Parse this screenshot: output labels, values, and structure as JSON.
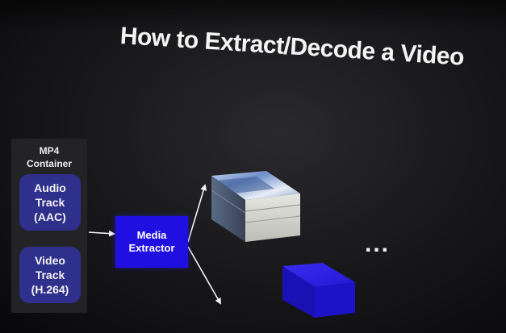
{
  "slide": {
    "title": "How to Extract/Decode a Video"
  },
  "container": {
    "label": "MP4\nContainer",
    "tracks": [
      {
        "label": "Audio\nTrack\n(AAC)"
      },
      {
        "label": "Video\nTrack\n(H.264)"
      }
    ]
  },
  "extractor": {
    "label": "Media\nExtractor"
  },
  "continuation": {
    "label": "..."
  },
  "colors": {
    "track_fill": "#2f2f8c",
    "extractor_fill": "#1f0fe0",
    "cube_blue": "#1c12c8"
  }
}
